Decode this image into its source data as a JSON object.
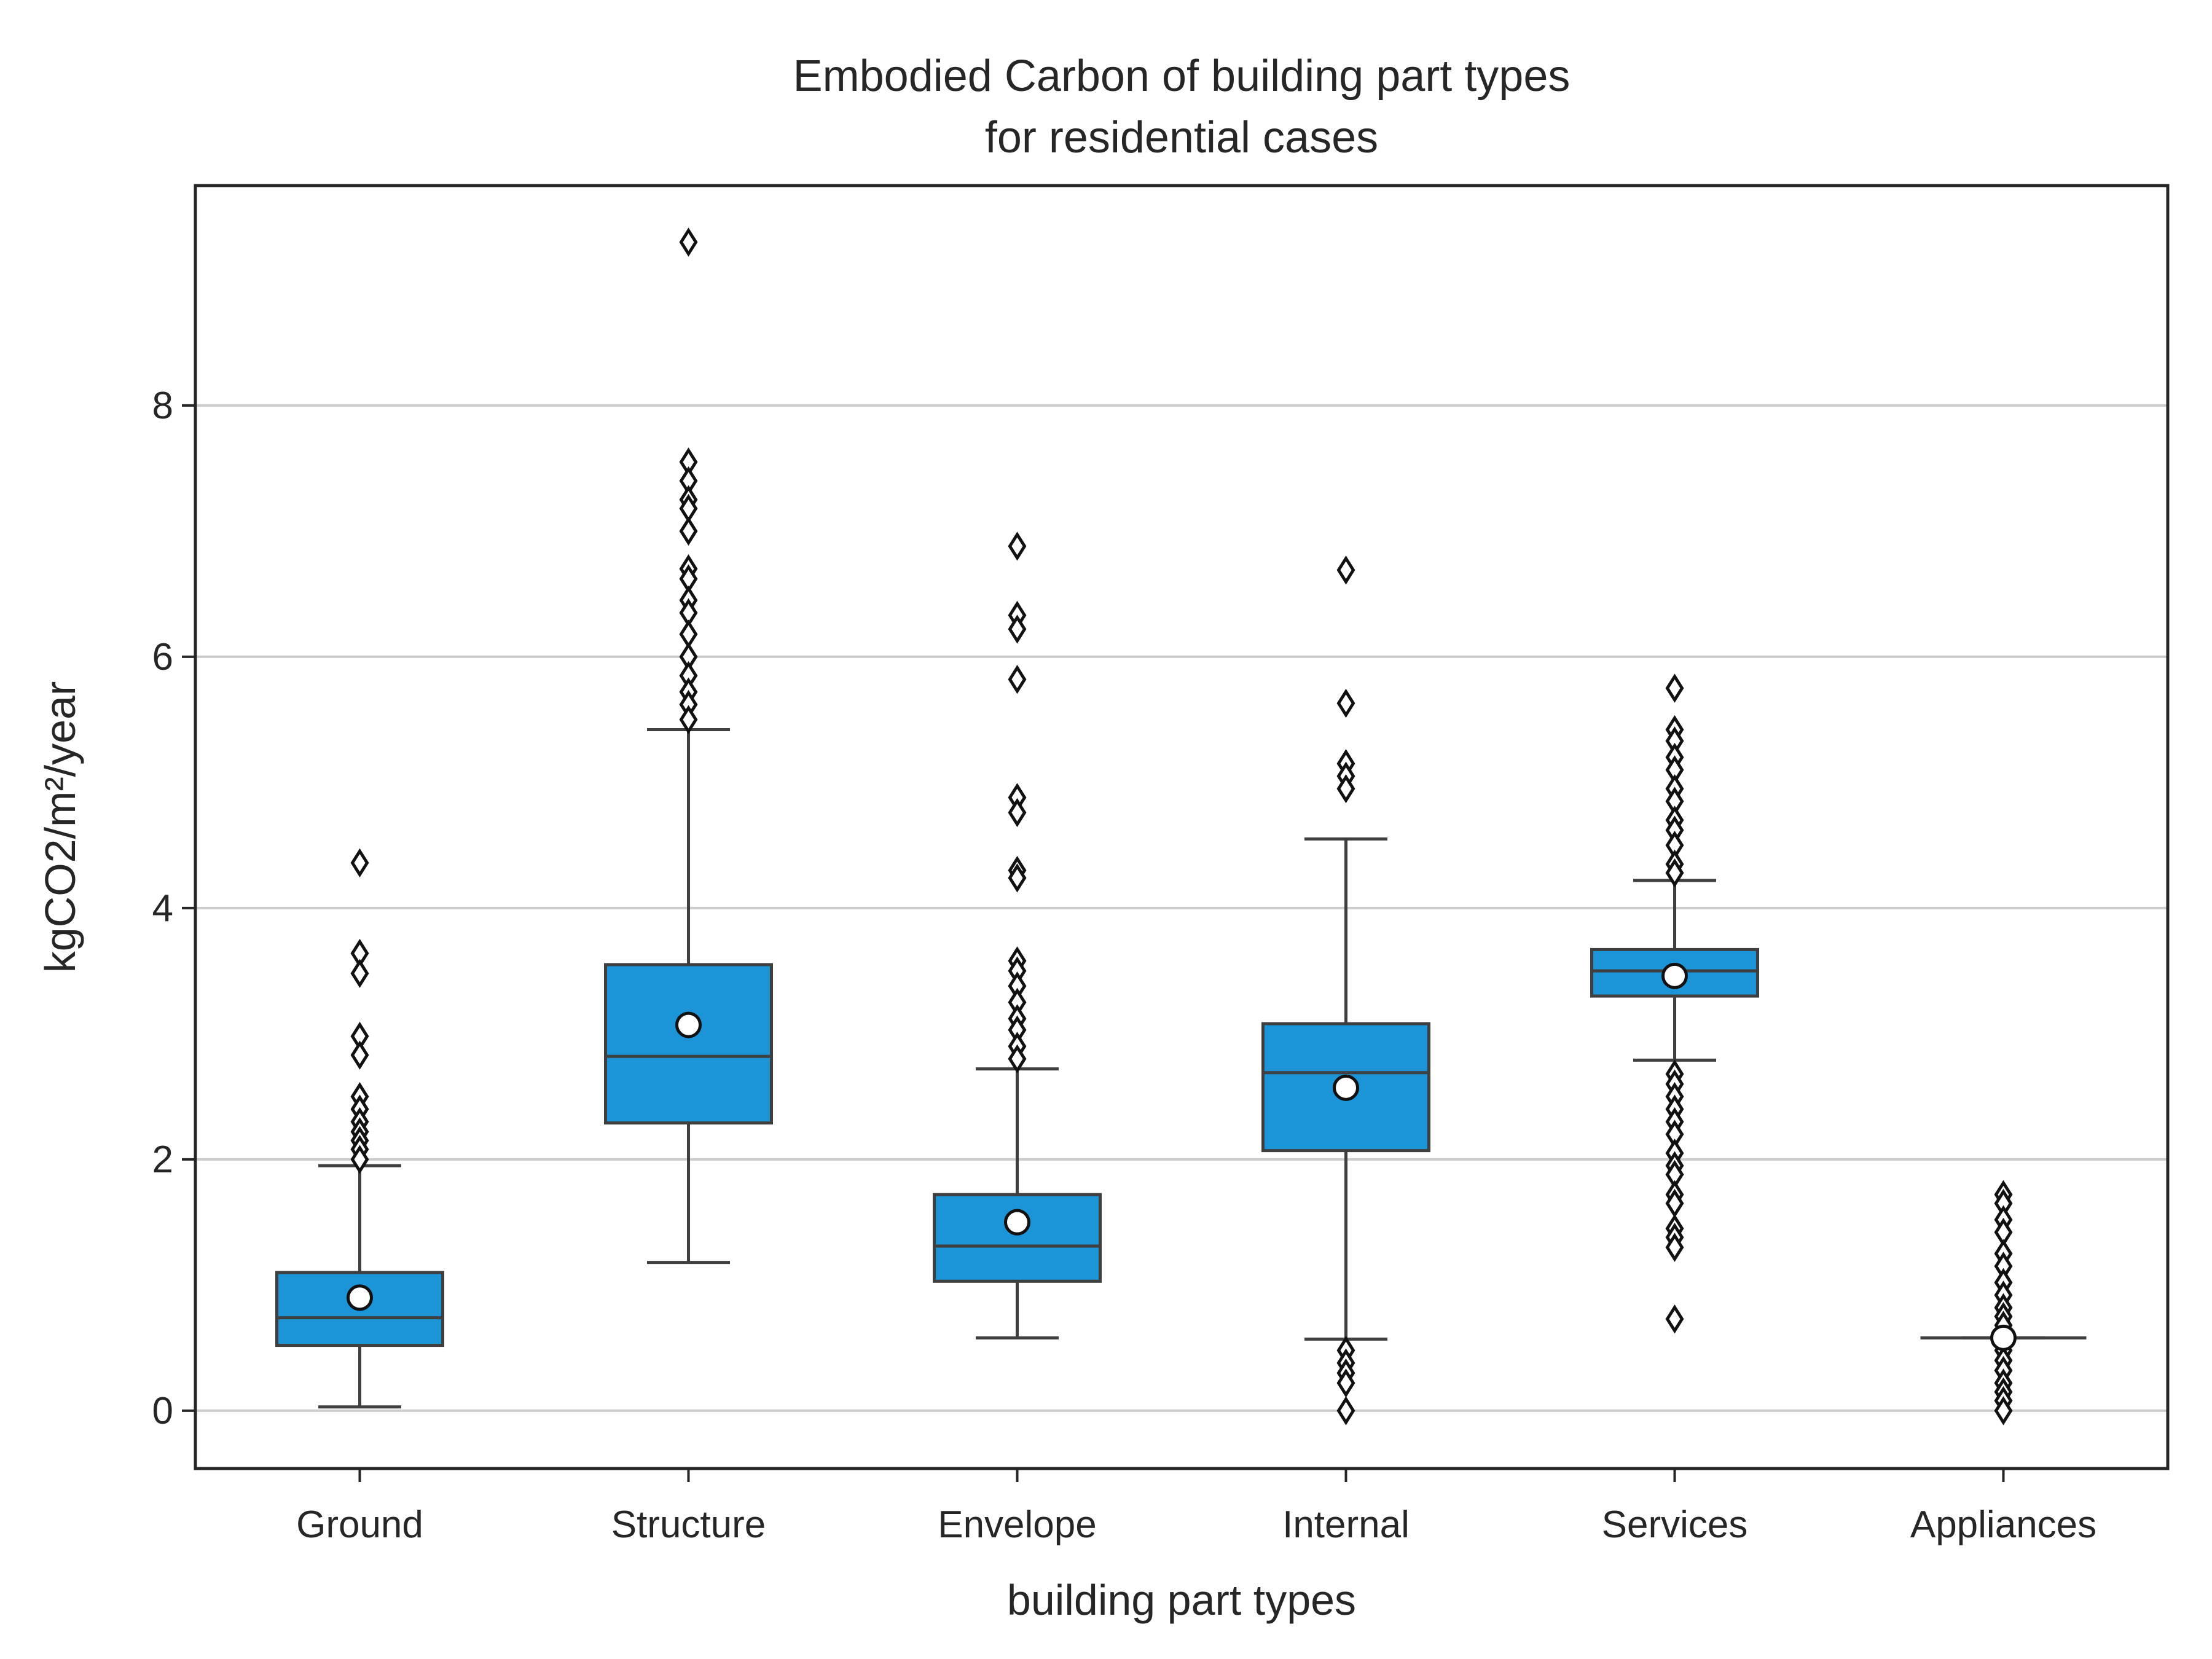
{
  "chart_data": {
    "type": "box",
    "title": [
      "Embodied Carbon of building part types",
      "for residential cases"
    ],
    "xlabel": "building part types",
    "ylabel": "kgCO2/m²/year",
    "ylim": [
      -0.46,
      9.75
    ],
    "yticks": [
      0,
      2,
      4,
      6,
      8
    ],
    "grid": "horizontal",
    "colors": {
      "box_fill": "#1b95d8",
      "box_edge": "#3f3f3f",
      "grid": "#cccccc",
      "axes": "#262626",
      "mean_marker": "#ffffff"
    },
    "categories": [
      "Ground",
      "Structure",
      "Envelope",
      "Internal",
      "Services",
      "Appliances"
    ],
    "boxes": [
      {
        "label": "Ground",
        "q1": 0.52,
        "median": 0.74,
        "q3": 1.1,
        "whisker_low": 0.03,
        "whisker_high": 1.95,
        "mean": 0.9,
        "outliers": [
          4.36,
          3.64,
          3.48,
          2.98,
          2.83,
          2.5,
          2.4,
          2.3,
          2.22,
          2.15,
          2.08,
          2.0
        ]
      },
      {
        "label": "Structure",
        "q1": 2.29,
        "median": 2.82,
        "q3": 3.55,
        "whisker_low": 1.18,
        "whisker_high": 5.42,
        "mean": 3.07,
        "outliers": [
          9.3,
          7.55,
          7.4,
          7.25,
          7.18,
          7.0,
          6.7,
          6.62,
          6.45,
          6.35,
          6.18,
          6.0,
          5.85,
          5.72,
          5.62,
          5.5
        ]
      },
      {
        "label": "Envelope",
        "q1": 1.03,
        "median": 1.31,
        "q3": 1.72,
        "whisker_low": 0.58,
        "whisker_high": 2.72,
        "mean": 1.5,
        "outliers": [
          6.88,
          6.33,
          6.22,
          5.82,
          4.88,
          4.76,
          4.3,
          4.24,
          3.58,
          3.5,
          3.38,
          3.25,
          3.12,
          3.03,
          2.9,
          2.8
        ]
      },
      {
        "label": "Internal",
        "q1": 2.07,
        "median": 2.69,
        "q3": 3.08,
        "whisker_low": 0.57,
        "whisker_high": 4.55,
        "mean": 2.57,
        "outliers": [
          6.69,
          5.63,
          5.15,
          5.05,
          4.95,
          0.48,
          0.38,
          0.3,
          0.22,
          0.0
        ]
      },
      {
        "label": "Services",
        "q1": 3.3,
        "median": 3.5,
        "q3": 3.67,
        "whisker_low": 2.79,
        "whisker_high": 4.22,
        "mean": 3.46,
        "outliers": [
          5.75,
          5.42,
          5.33,
          5.2,
          5.1,
          4.95,
          4.85,
          4.7,
          4.62,
          4.5,
          4.35,
          4.28,
          2.68,
          2.6,
          2.5,
          2.4,
          2.3,
          2.2,
          2.05,
          1.95,
          1.88,
          1.72,
          1.65,
          1.45,
          1.38,
          1.3,
          0.73
        ]
      },
      {
        "label": "Appliances",
        "q1": 0.58,
        "median": 0.58,
        "q3": 0.58,
        "whisker_low": 0.58,
        "whisker_high": 0.58,
        "mean": 0.58,
        "outliers": [
          1.72,
          1.65,
          1.52,
          1.42,
          1.25,
          1.15,
          1.02,
          0.92,
          0.82,
          0.75,
          0.68,
          0.48,
          0.4,
          0.32,
          0.22,
          0.15,
          0.08,
          0.0
        ]
      }
    ]
  }
}
